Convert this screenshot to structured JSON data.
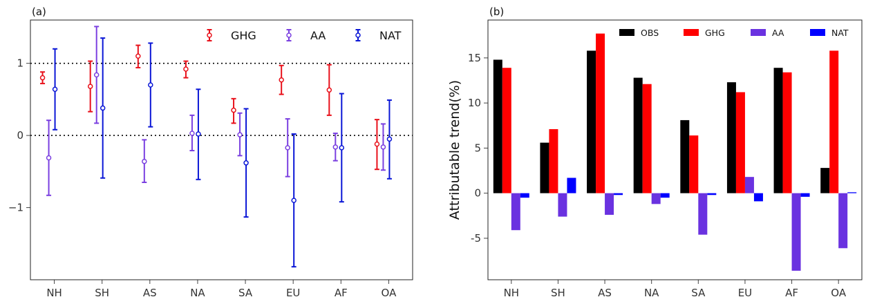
{
  "chart_data": [
    {
      "panel": "(a)",
      "type": "errorbar",
      "categories": [
        "NH",
        "SH",
        "AS",
        "NA",
        "SA",
        "EU",
        "AF",
        "OA"
      ],
      "ylim": [
        -2.0,
        1.6
      ],
      "yticks": [
        -1,
        0,
        1
      ],
      "ytick_labels": [
        "−1",
        "0",
        "1"
      ],
      "reference_lines": [
        0,
        1
      ],
      "legend_position": "top-right",
      "series": [
        {
          "name": "GHG",
          "color": "#e8101a",
          "center": [
            0.8,
            0.68,
            1.1,
            0.92,
            0.35,
            0.77,
            0.63,
            -0.12
          ],
          "lower": [
            0.72,
            0.33,
            0.94,
            0.8,
            0.17,
            0.57,
            0.28,
            -0.47
          ],
          "upper": [
            0.88,
            1.03,
            1.25,
            1.03,
            0.51,
            0.97,
            0.98,
            0.22
          ]
        },
        {
          "name": "AA",
          "color": "#7a3fe0",
          "center": [
            -0.31,
            0.84,
            -0.36,
            0.03,
            0.01,
            -0.17,
            -0.16,
            -0.16
          ],
          "lower": [
            -0.83,
            0.17,
            -0.65,
            -0.21,
            -0.28,
            -0.57,
            -0.35,
            -0.48
          ],
          "upper": [
            0.21,
            1.51,
            -0.06,
            0.28,
            0.31,
            0.23,
            0.03,
            0.16
          ]
        },
        {
          "name": "NAT",
          "color": "#0a16d6",
          "center": [
            0.64,
            0.38,
            0.7,
            0.02,
            -0.38,
            -0.9,
            -0.17,
            -0.05
          ],
          "lower": [
            0.08,
            -0.59,
            0.12,
            -0.61,
            -1.13,
            -1.82,
            -0.92,
            -0.6
          ],
          "upper": [
            1.2,
            1.35,
            1.28,
            0.64,
            0.37,
            0.02,
            0.58,
            0.49
          ]
        }
      ]
    },
    {
      "panel": "(b)",
      "type": "bar",
      "categories": [
        "NH",
        "SH",
        "AS",
        "NA",
        "SA",
        "EU",
        "AF",
        "OA"
      ],
      "ylabel": "Attributable trend(%)",
      "ylim": [
        -9.6,
        19.2
      ],
      "yticks": [
        -5,
        0,
        5,
        10,
        15
      ],
      "ytick_labels": [
        "-5",
        "0",
        "5",
        "10",
        "15"
      ],
      "legend_position": "top",
      "series": [
        {
          "name": "OBS",
          "color": "#000000",
          "values": [
            14.8,
            5.6,
            15.8,
            12.8,
            8.1,
            12.3,
            13.9,
            2.8
          ]
        },
        {
          "name": "GHG",
          "color": "#ff0000",
          "values": [
            13.9,
            7.1,
            17.7,
            12.1,
            6.4,
            11.2,
            13.4,
            15.8
          ]
        },
        {
          "name": "AA",
          "color": "#6a32e0",
          "values": [
            -4.1,
            -2.6,
            -2.4,
            -1.2,
            -4.6,
            1.8,
            -8.6,
            -6.1
          ]
        },
        {
          "name": "NAT",
          "color": "#0000ff",
          "values": [
            -0.5,
            1.7,
            -0.2,
            -0.5,
            -0.2,
            -0.9,
            -0.4,
            0.1
          ]
        }
      ]
    }
  ]
}
